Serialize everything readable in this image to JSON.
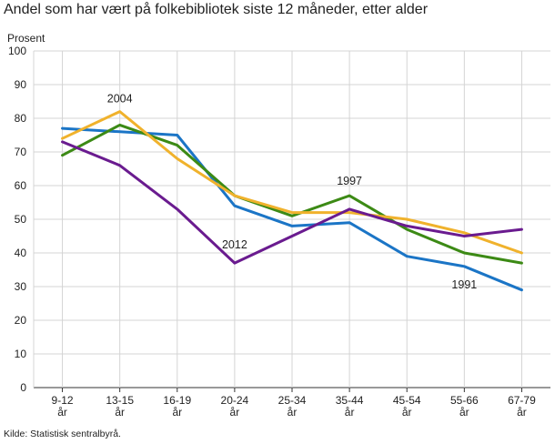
{
  "chart_data": {
    "type": "line",
    "title": "Andel som har vært på folkebibliotek siste 12 måneder, etter alder",
    "ylabel": "Prosent",
    "ylim": [
      0,
      100
    ],
    "yticks": [
      0,
      10,
      20,
      30,
      40,
      50,
      60,
      70,
      80,
      90,
      100
    ],
    "categories": [
      {
        "top": "9-12",
        "bottom": "år"
      },
      {
        "top": "13-15",
        "bottom": "år"
      },
      {
        "top": "16-19",
        "bottom": "år"
      },
      {
        "top": "20-24",
        "bottom": "år"
      },
      {
        "top": "25-34",
        "bottom": "år"
      },
      {
        "top": "35-44",
        "bottom": "år"
      },
      {
        "top": "45-54",
        "bottom": "år"
      },
      {
        "top": "55-66",
        "bottom": "år"
      },
      {
        "top": "67-79",
        "bottom": "år"
      }
    ],
    "series": [
      {
        "name": "1991",
        "color": "#1b75c6",
        "values": [
          77,
          76,
          75,
          54,
          48,
          49,
          39,
          36,
          29
        ]
      },
      {
        "name": "1997",
        "color": "#3c8a15",
        "values": [
          69,
          78,
          72,
          57,
          51,
          57,
          47,
          40,
          37
        ]
      },
      {
        "name": "2004",
        "color": "#f0b22c",
        "values": [
          74,
          82,
          68,
          57,
          52,
          52,
          50,
          46,
          40
        ]
      },
      {
        "name": "2012",
        "color": "#6a1b8f",
        "values": [
          73,
          66,
          53,
          37,
          45,
          53,
          48,
          45,
          47
        ]
      }
    ],
    "annotations": [
      {
        "text": "2004",
        "series": "2004",
        "category_index": 1
      },
      {
        "text": "1997",
        "series": "1997",
        "category_index": 5
      },
      {
        "text": "2012",
        "series": "2012",
        "category_index": 3
      },
      {
        "text": "1991",
        "series": "1991",
        "category_index": 7
      }
    ],
    "grid": true,
    "source": "Kilde: Statistisk sentralbyrå."
  }
}
